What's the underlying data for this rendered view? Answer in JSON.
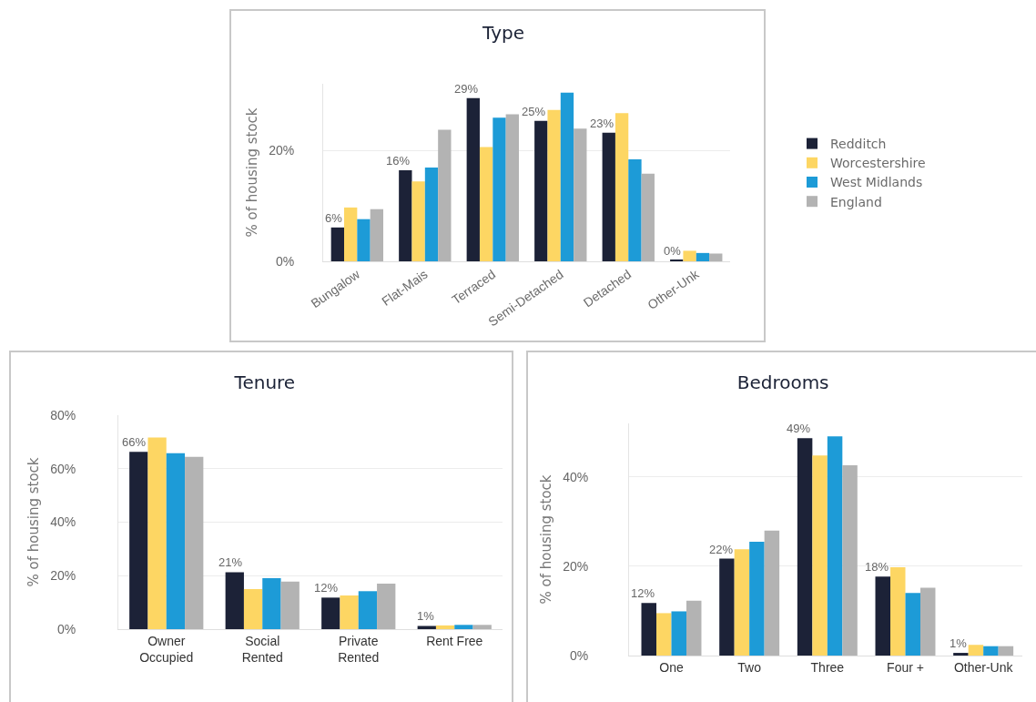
{
  "chart_data": [
    {
      "type": "bar",
      "title": "Type",
      "ylabel": "% of housing stock",
      "categories": [
        "Bungalow",
        "Flat-Mais",
        "Terraced",
        "Semi-Detached",
        "Detached",
        "Other-Unk"
      ],
      "series": [
        {
          "name": "Redditch",
          "color": "#1c2237",
          "values": [
            6.1,
            16.4,
            29.4,
            25.3,
            23.2,
            0.2
          ],
          "value_labels": [
            "6%",
            "16%",
            "29%",
            "25%",
            "23%",
            "0%"
          ]
        },
        {
          "name": "Worcestershire",
          "color": "#fdd663",
          "values": [
            9.7,
            14.4,
            20.6,
            27.3,
            26.7,
            1.9
          ]
        },
        {
          "name": "West Midlands",
          "color": "#1d9bd7",
          "values": [
            7.6,
            16.9,
            25.9,
            30.4,
            18.4,
            1.5
          ]
        },
        {
          "name": "England",
          "color": "#b3b3b3",
          "values": [
            9.4,
            23.7,
            26.5,
            23.9,
            15.8,
            1.4
          ]
        }
      ],
      "ylim": [
        0,
        32
      ],
      "yticks": [
        {
          "value": 0,
          "label": "0%"
        },
        {
          "value": 20,
          "label": "20%"
        }
      ],
      "grid": "y",
      "legend": "right"
    },
    {
      "type": "bar",
      "title": "Tenure",
      "ylabel": "% of housing stock",
      "categories": [
        "Owner\nOccupied",
        "Social\nRented",
        "Private\nRented",
        "Rent Free"
      ],
      "series": [
        {
          "color": "#1c2237",
          "values": [
            66.3,
            21.3,
            11.8,
            1.2
          ],
          "value_labels": [
            "66%",
            "21%",
            "12%",
            "1%"
          ]
        },
        {
          "color": "#fdd663",
          "values": [
            71.7,
            15.0,
            12.6,
            1.4
          ]
        },
        {
          "color": "#1d9bd7",
          "values": [
            65.8,
            19.1,
            14.2,
            1.6
          ]
        },
        {
          "color": "#b3b3b3",
          "values": [
            64.4,
            17.8,
            17.0,
            1.6
          ]
        }
      ],
      "ylim": [
        0,
        80
      ],
      "yticks": [
        {
          "value": 0,
          "label": "0%"
        },
        {
          "value": 20,
          "label": "20%"
        },
        {
          "value": 40,
          "label": "40%"
        },
        {
          "value": 60,
          "label": "60%"
        },
        {
          "value": 80,
          "label": "80%"
        }
      ],
      "grid": "y"
    },
    {
      "type": "bar",
      "title": "Bedrooms",
      "ylabel": "% of housing stock",
      "categories": [
        "One",
        "Two",
        "Three",
        "Four +",
        "Other-Unk"
      ],
      "series": [
        {
          "color": "#1c2237",
          "values": [
            11.8,
            21.7,
            48.7,
            17.7,
            0.6
          ],
          "value_labels": [
            "12%",
            "22%",
            "49%",
            "18%",
            "1%"
          ]
        },
        {
          "color": "#fdd663",
          "values": [
            9.5,
            23.8,
            44.8,
            19.8,
            2.4
          ]
        },
        {
          "color": "#1d9bd7",
          "values": [
            9.9,
            25.5,
            49.1,
            14.0,
            2.1
          ]
        },
        {
          "color": "#b3b3b3",
          "values": [
            12.3,
            28.0,
            42.6,
            15.2,
            2.1
          ]
        }
      ],
      "ylim": [
        0,
        52
      ],
      "yticks": [
        {
          "value": 0,
          "label": "0%"
        },
        {
          "value": 20,
          "label": "20%"
        },
        {
          "value": 40,
          "label": "40%"
        }
      ],
      "grid": "y"
    }
  ]
}
